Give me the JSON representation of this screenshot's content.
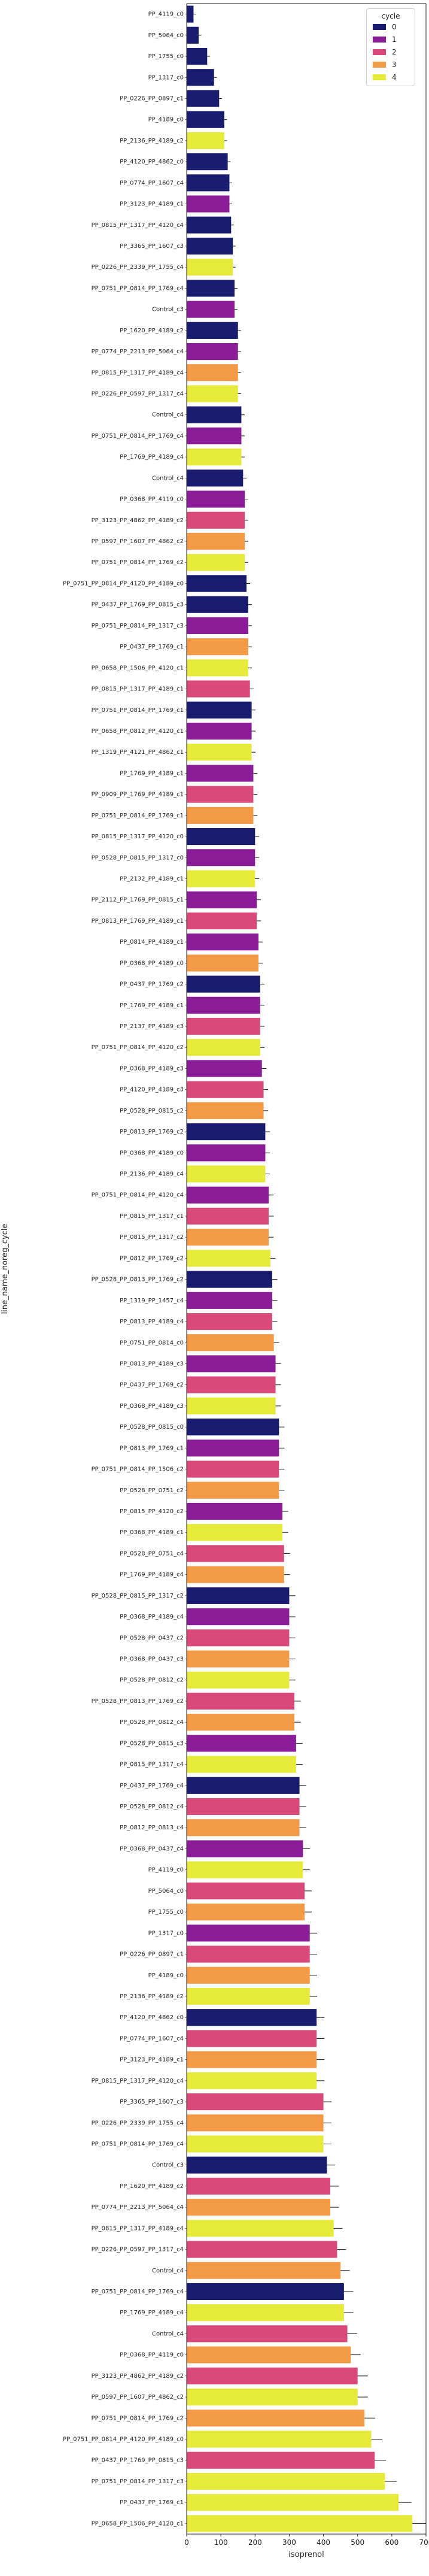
{
  "chart_data": {
    "type": "bar",
    "orientation": "horizontal",
    "title": "",
    "xlabel": "isoprenol",
    "ylabel": "line_name_noreg_cycle",
    "xlim": [
      0,
      700
    ],
    "xticks": [
      0,
      100,
      200,
      300,
      400,
      500,
      600,
      700
    ],
    "grid": false,
    "legend": {
      "title": "cycle",
      "placement": "top-right",
      "entries": [
        "0",
        "1",
        "2",
        "3",
        "4"
      ]
    },
    "colors": {
      "0": "#191c6e",
      "1": "#8a1d97",
      "2": "#d94a7b",
      "3": "#f39a46",
      "4": "#e5ea3b"
    },
    "visible_row_labels": [
      "PP_4119_c0",
      "PP_5064_c0",
      "PP_1755_c0",
      "PP_1317_c0",
      "PP_0226_PP_0897_c1",
      "PP_4189_c0",
      "PP_2136_PP_4189_c2",
      "PP_4120_PP_4862_c0",
      "PP_0774_PP_1607_c4",
      "PP_3123_PP_4189_c1",
      "PP_0815_PP_1317_PP_4120_c4",
      "PP_3365_PP_1607_c3",
      "PP_0226_PP_2339_PP_1755_c4",
      "PP_0751_PP_0814_PP_1769_c4",
      "Control_c3",
      "PP_1620_PP_4189_c2",
      "PP_0774_PP_2213_PP_5064_c4",
      "PP_0815_PP_1317_PP_4189_c4",
      "PP_0226_PP_0597_PP_1317_c4",
      "Control_c4",
      "PP_0751_PP_0814_PP_1769_c4",
      "PP_1769_PP_4189_c4",
      "Control_c4",
      "PP_0368_PP_4119_c0",
      "PP_3123_PP_4862_PP_4189_c2",
      "PP_0597_PP_1607_PP_4862_c2",
      "PP_0751_PP_0814_PP_1769_c2",
      "PP_0751_PP_0814_PP_4120_PP_4189_c0",
      "PP_0437_PP_1769_PP_0815_c3",
      "PP_0751_PP_0814_PP_1317_c3",
      "PP_0437_PP_1769_c1",
      "PP_0658_PP_1506_PP_4120_c1",
      "PP_0815_PP_1317_PP_4189_c1",
      "PP_0751_PP_0814_PP_1769_c1",
      "PP_0658_PP_0812_PP_4120_c1",
      "PP_1319_PP_4121_PP_4862_c1",
      "PP_1769_PP_4189_c1",
      "PP_0909_PP_1769_PP_4189_c1",
      "PP_0751_PP_0814_PP_1769_c1",
      "PP_0815_PP_1317_PP_4120_c0",
      "PP_0528_PP_0815_PP_1317_c0",
      "PP_2132_PP_4189_c1",
      "PP_2112_PP_1769_PP_0815_c1",
      "PP_0813_PP_1769_PP_4189_c1",
      "PP_0814_PP_4189_c1",
      "PP_0368_PP_4189_c0",
      "PP_0437_PP_1769_c2",
      "PP_1769_PP_4189_c1",
      "PP_2137_PP_4189_c3",
      "PP_0751_PP_0814_PP_4120_c2",
      "PP_0368_PP_4189_c3",
      "PP_4120_PP_4189_c3",
      "PP_0528_PP_0815_c2",
      "PP_0813_PP_1769_c2",
      "PP_0368_PP_4189_c0",
      "PP_2136_PP_4189_c4",
      "PP_0751_PP_0814_PP_4120_c4",
      "PP_0815_PP_1317_c1",
      "PP_0815_PP_1317_c2",
      "PP_0812_PP_1769_c2",
      "PP_0528_PP_0813_PP_1769_c2",
      "PP_1319_PP_1457_c4",
      "PP_0813_PP_4189_c4",
      "PP_0751_PP_0814_c0",
      "PP_0813_PP_4189_c3",
      "PP_0437_PP_1769_c2",
      "PP_0368_PP_4189_c3",
      "PP_0528_PP_0815_c0",
      "PP_0813_PP_1769_c1",
      "PP_0751_PP_0814_PP_1506_c2",
      "PP_0528_PP_0751_c2",
      "PP_0815_PP_4120_c2",
      "PP_0368_PP_4189_c1",
      "PP_0528_PP_0751_c4",
      "PP_1769_PP_4189_c4",
      "PP_0528_PP_0815_PP_1317_c2",
      "PP_0368_PP_4189_c4",
      "PP_0528_PP_0437_c2",
      "PP_0368_PP_0437_c3",
      "PP_0528_PP_0812_c2",
      "PP_0528_PP_0813_PP_1769_c2",
      "PP_0528_PP_0812_c4",
      "PP_0528_PP_0815_c3",
      "PP_0815_PP_1317_c4",
      "PP_0437_PP_1769_c4",
      "PP_0528_PP_0812_c4",
      "PP_0812_PP_0813_c4",
      "PP_0368_PP_0437_c4"
    ],
    "series": [
      {
        "name": "0",
        "values": [
          20,
          35,
          60,
          80,
          95,
          110,
          120,
          125,
          130,
          135,
          140,
          150,
          160,
          165,
          175,
          180,
          190,
          200,
          215,
          230,
          250,
          270,
          300,
          330,
          380,
          410,
          460
        ]
      },
      {
        "name": "1",
        "values": [
          125,
          140,
          150,
          160,
          170,
          180,
          190,
          195,
          200,
          205,
          210,
          215,
          220,
          230,
          240,
          250,
          260,
          270,
          280,
          300,
          320,
          340,
          360
        ]
      },
      {
        "name": "2",
        "values": [
          170,
          185,
          195,
          205,
          215,
          225,
          240,
          250,
          260,
          270,
          285,
          300,
          315,
          330,
          345,
          360,
          380,
          400,
          420,
          440,
          470,
          500,
          550
        ]
      },
      {
        "name": "3",
        "values": [
          150,
          170,
          180,
          195,
          210,
          225,
          240,
          255,
          270,
          285,
          300,
          315,
          330,
          345,
          360,
          380,
          400,
          420,
          450,
          480,
          520
        ]
      },
      {
        "name": "4",
        "values": [
          110,
          135,
          150,
          160,
          170,
          180,
          190,
          200,
          215,
          230,
          245,
          260,
          280,
          300,
          320,
          340,
          360,
          380,
          400,
          430,
          460,
          500,
          540,
          580,
          620,
          660
        ]
      }
    ]
  }
}
